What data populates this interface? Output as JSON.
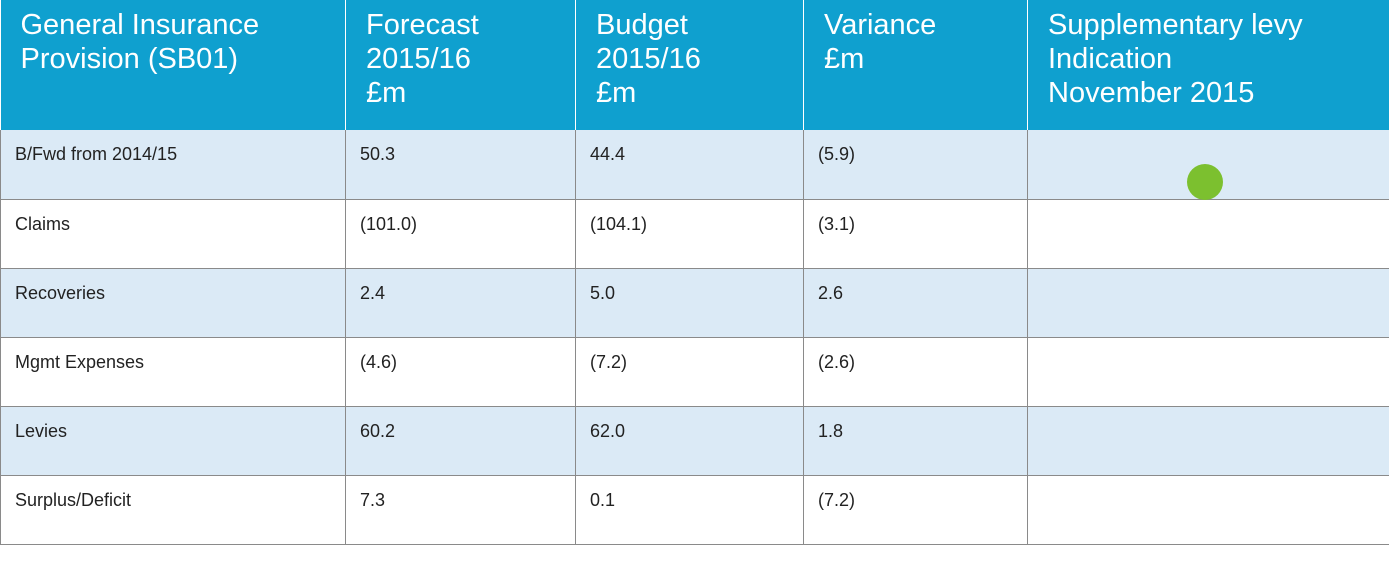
{
  "table": {
    "header": [
      [
        "General Insurance",
        "Provision (SB01)"
      ],
      [
        "Forecast",
        "2015/16",
        "£m"
      ],
      [
        "Budget",
        "2015/16",
        "£m"
      ],
      [
        "Variance",
        "£m"
      ],
      [
        "Supplementary levy",
        "Indication",
        "November 2015"
      ]
    ],
    "rows": [
      [
        "B/Fwd from 2014/15",
        "50.3",
        "44.4",
        "(5.9)"
      ],
      [
        "Claims",
        "(101.0)",
        "(104.1)",
        "(3.1)"
      ],
      [
        "Recoveries",
        "2.4",
        "5.0",
        "2.6"
      ],
      [
        "Mgmt Expenses",
        "(4.6)",
        "(7.2)",
        "(2.6)"
      ],
      [
        "Levies",
        "60.2",
        "62.0",
        "1.8"
      ],
      [
        "Surplus/Deficit",
        "7.3",
        "0.1",
        "(7.2)"
      ]
    ]
  }
}
